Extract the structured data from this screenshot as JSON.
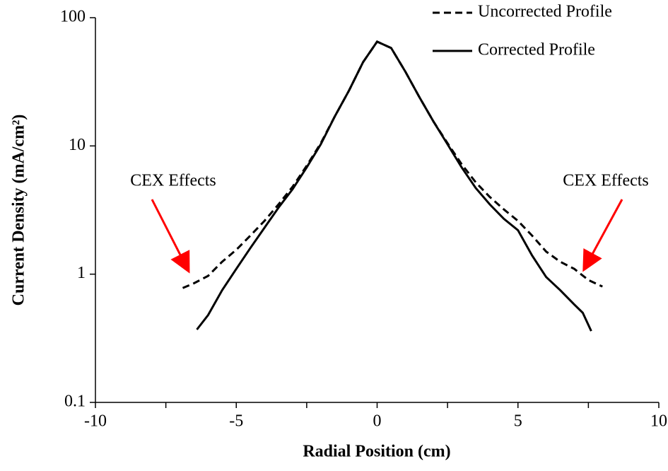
{
  "chart_data": {
    "type": "line",
    "xlabel": "Radial Position (cm)",
    "ylabel": "Current Density (mA/cm²)",
    "xlim": [
      -10,
      10
    ],
    "xticks": [
      -10,
      -5,
      0,
      5,
      10
    ],
    "xminorticks": [
      -7.5,
      -2.5,
      2.5,
      7.5
    ],
    "ylim": [
      0.1,
      100
    ],
    "yticks": [
      0.1,
      1,
      10,
      100
    ],
    "yscale": "log",
    "legend": "upper right",
    "series": [
      {
        "name": "Uncorrected Profile",
        "color": "#000000",
        "linestyle": "dashed",
        "x": [
          -6.9,
          -6.5,
          -6,
          -5.5,
          -5,
          -4.5,
          -4,
          -3.5,
          -3,
          -2.5,
          -2,
          -1.5,
          -1,
          -0.5,
          0,
          0.5,
          1,
          1.5,
          2,
          2.5,
          3,
          3.5,
          4,
          4.5,
          5,
          5.5,
          6,
          6.5,
          7,
          7.5,
          8
        ],
        "values": [
          0.78,
          0.85,
          0.97,
          1.25,
          1.55,
          2.0,
          2.6,
          3.5,
          4.8,
          7,
          10.5,
          17,
          27,
          45,
          65,
          58,
          38,
          24,
          15.5,
          10.5,
          7.2,
          5.2,
          4.0,
          3.2,
          2.6,
          2.0,
          1.5,
          1.25,
          1.1,
          0.9,
          0.8
        ]
      },
      {
        "name": "Corrected Profile",
        "color": "#000000",
        "linestyle": "solid",
        "x": [
          -6.4,
          -6,
          -5.5,
          -5,
          -4.5,
          -4,
          -3.5,
          -3,
          -2.5,
          -2,
          -1.5,
          -1,
          -0.5,
          0,
          0.5,
          1,
          1.5,
          2,
          2.5,
          3,
          3.5,
          4,
          4.5,
          5,
          5.5,
          6,
          6.5,
          7,
          7.3,
          7.6
        ],
        "values": [
          0.37,
          0.48,
          0.75,
          1.1,
          1.6,
          2.3,
          3.3,
          4.6,
          6.8,
          10.3,
          17,
          27,
          45,
          65,
          58,
          38,
          24,
          15.5,
          10.3,
          6.8,
          4.7,
          3.5,
          2.7,
          2.2,
          1.4,
          0.95,
          0.75,
          0.58,
          0.5,
          0.36
        ]
      }
    ],
    "annotations": [
      "CEX Effects",
      "CEX Effects"
    ]
  }
}
